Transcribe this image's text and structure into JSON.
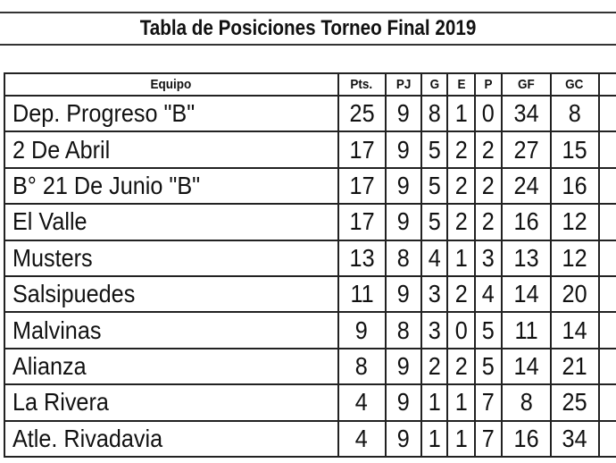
{
  "title": "Tabla de Posiciones Torneo Final 2019",
  "headers": [
    "Equipo",
    "Pts.",
    "PJ",
    "G",
    "E",
    "P",
    "GF",
    "GC"
  ],
  "rows": [
    [
      "Dep. Progreso \"B\"",
      "25",
      "9",
      "8",
      "1",
      "0",
      "34",
      "8"
    ],
    [
      "2 De Abril",
      "17",
      "9",
      "5",
      "2",
      "2",
      "27",
      "15"
    ],
    [
      "B° 21 De Junio \"B\"",
      "17",
      "9",
      "5",
      "2",
      "2",
      "24",
      "16"
    ],
    [
      "El Valle",
      "17",
      "9",
      "5",
      "2",
      "2",
      "16",
      "12"
    ],
    [
      "Musters",
      "13",
      "8",
      "4",
      "1",
      "3",
      "13",
      "12"
    ],
    [
      "Salsipuedes",
      "11",
      "9",
      "3",
      "2",
      "4",
      "14",
      "20"
    ],
    [
      "Malvinas",
      "9",
      "8",
      "3",
      "0",
      "5",
      "11",
      "14"
    ],
    [
      "Alianza",
      "8",
      "9",
      "2",
      "2",
      "5",
      "14",
      "21"
    ],
    [
      "La Rivera",
      "4",
      "9",
      "1",
      "1",
      "7",
      "8",
      "25"
    ],
    [
      "Atle. Rivadavia",
      "4",
      "9",
      "1",
      "1",
      "7",
      "16",
      "34"
    ]
  ]
}
